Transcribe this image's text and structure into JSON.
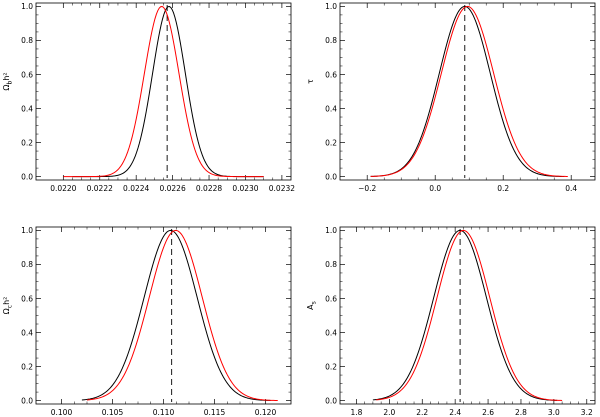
{
  "chart_data": [
    {
      "type": "line",
      "ylabel": "Ω_b h²",
      "xlim": [
        0.02185,
        0.02325
      ],
      "ylim": [
        -0.02,
        1.02
      ],
      "xticks": [
        "0.0220",
        "0.0222",
        "0.0224",
        "0.0226",
        "0.0228",
        "0.0230",
        "0.0232"
      ],
      "xtick_values": [
        0.022,
        0.0222,
        0.0224,
        0.0226,
        0.0228,
        0.023,
        0.0232
      ],
      "yticks": [
        "0.0",
        "0.2",
        "0.4",
        "0.6",
        "0.8",
        "1.0"
      ],
      "ytick_values": [
        0,
        0.2,
        0.4,
        0.6,
        0.8,
        1.0
      ],
      "dashed_x": 0.02257,
      "series": [
        {
          "color": "#000000",
          "type": "gaussian",
          "mean": 0.02258,
          "sigma": 9e-05,
          "support": [
            0.02205,
            0.0231
          ]
        },
        {
          "color": "#ff0000",
          "type": "gaussian",
          "mean": 0.02254,
          "sigma": 9.5e-05,
          "support": [
            0.022,
            0.0231
          ]
        }
      ]
    },
    {
      "type": "line",
      "ylabel": "τ",
      "xlim": [
        -0.28,
        0.47
      ],
      "ylim": [
        -0.02,
        1.02
      ],
      "xticks": [
        "−0.2",
        "0.0",
        "0.2",
        "0.4"
      ],
      "xtick_values": [
        -0.2,
        0.0,
        0.2,
        0.4
      ],
      "yticks": [
        "0.0",
        "0.2",
        "0.4",
        "0.6",
        "0.8",
        "1.0"
      ],
      "ytick_values": [
        0,
        0.2,
        0.4,
        0.6,
        0.8,
        1.0
      ],
      "dashed_x": 0.087,
      "series": [
        {
          "color": "#000000",
          "type": "gaussian",
          "mean": 0.087,
          "sigma": 0.075,
          "support": [
            -0.19,
            0.38
          ]
        },
        {
          "color": "#ff0000",
          "type": "gaussian",
          "mean": 0.095,
          "sigma": 0.077,
          "support": [
            -0.19,
            0.39
          ]
        }
      ]
    },
    {
      "type": "line",
      "ylabel": "Ω_c h²",
      "xlim": [
        0.0975,
        0.1225
      ],
      "ylim": [
        -0.02,
        1.02
      ],
      "xticks": [
        "0.100",
        "0.105",
        "0.110",
        "0.115",
        "0.120"
      ],
      "xtick_values": [
        0.1,
        0.105,
        0.11,
        0.115,
        0.12
      ],
      "yticks": [
        "0.0",
        "0.2",
        "0.4",
        "0.6",
        "0.8",
        "1.0"
      ],
      "ytick_values": [
        0,
        0.2,
        0.4,
        0.6,
        0.8,
        1.0
      ],
      "dashed_x": 0.1108,
      "series": [
        {
          "color": "#000000",
          "type": "gaussian",
          "mean": 0.1107,
          "sigma": 0.0026,
          "support": [
            0.102,
            0.1205
          ]
        },
        {
          "color": "#ff0000",
          "type": "gaussian",
          "mean": 0.1112,
          "sigma": 0.0026,
          "support": [
            0.1025,
            0.1212
          ]
        }
      ]
    },
    {
      "type": "line",
      "ylabel": "A_s",
      "xlim": [
        1.7,
        3.25
      ],
      "ylim": [
        -0.02,
        1.02
      ],
      "xticks": [
        "1.8",
        "2.0",
        "2.2",
        "2.4",
        "2.6",
        "2.8",
        "3.0",
        "3.2"
      ],
      "xtick_values": [
        1.8,
        2.0,
        2.2,
        2.4,
        2.6,
        2.8,
        3.0,
        3.2
      ],
      "yticks": [
        "0.0",
        "0.2",
        "0.4",
        "0.6",
        "0.8",
        "1.0"
      ],
      "ytick_values": [
        0,
        0.2,
        0.4,
        0.6,
        0.8,
        1.0
      ],
      "dashed_x": 2.43,
      "series": [
        {
          "color": "#000000",
          "type": "gaussian",
          "mean": 2.43,
          "sigma": 0.16,
          "support": [
            1.9,
            3.02
          ]
        },
        {
          "color": "#ff0000",
          "type": "gaussian",
          "mean": 2.45,
          "sigma": 0.16,
          "support": [
            1.92,
            3.05
          ]
        }
      ]
    }
  ]
}
